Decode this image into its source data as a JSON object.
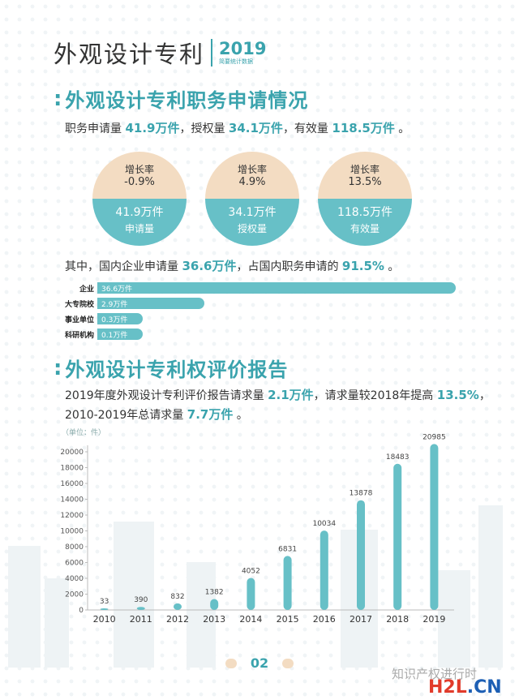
{
  "header": {
    "title": "外观设计专利",
    "year": "2019",
    "subtitle": "简要统计数据"
  },
  "section1": {
    "title": "外观设计专利职务申请情况",
    "intro": {
      "p1": "职务申请量",
      "v1": "41.9万件",
      "p2": "，授权量",
      "v2": "34.1万件",
      "p3": "，有效量",
      "v3": "118.5万件",
      "p4": "。"
    },
    "circles": [
      {
        "growth_label": "增长率",
        "growth": "-0.9%",
        "value": "41.9万件",
        "name": "申请量"
      },
      {
        "growth_label": "增长率",
        "growth": "4.9%",
        "value": "34.1万件",
        "name": "授权量"
      },
      {
        "growth_label": "增长率",
        "growth": "13.5%",
        "value": "118.5万件",
        "name": "有效量"
      }
    ],
    "domestic": {
      "p1": "其中，国内企业申请量",
      "v1": "36.6万件",
      "p2": "，占国内职务申请的",
      "v2": "91.5%",
      "p3": "。"
    },
    "breakdown": [
      {
        "label": "企业",
        "value_text": "36.6万件",
        "value": 36.6
      },
      {
        "label": "大专院校",
        "value_text": "2.9万件",
        "value": 2.9
      },
      {
        "label": "事业单位",
        "value_text": "0.3万件",
        "value": 0.3
      },
      {
        "label": "科研机构",
        "value_text": "0.1万件",
        "value": 0.1
      }
    ]
  },
  "section2": {
    "title": "外观设计专利权评价报告",
    "line1": {
      "p1": "2019年度外观设计专利评价报告请求量",
      "v1": "2.1万件",
      "p2": "，请求量较2018年提高",
      "v2": "13.5%",
      "p3": "，"
    },
    "line2": {
      "p1": "2010-2019年总请求量",
      "v1": "7.7万件",
      "p2": "。"
    }
  },
  "chart_data": {
    "type": "bar",
    "title": "",
    "unit_label": "（单位：件）",
    "xlabel": "",
    "ylabel": "",
    "categories": [
      "2010",
      "2011",
      "2012",
      "2013",
      "2014",
      "2015",
      "2016",
      "2017",
      "2018",
      "2019"
    ],
    "values": [
      33,
      390,
      832,
      1382,
      4052,
      6831,
      10034,
      13878,
      18483,
      20985
    ],
    "ylim": [
      0,
      20000
    ],
    "yticks": [
      0,
      2000,
      4000,
      6000,
      8000,
      10000,
      12000,
      14000,
      16000,
      18000,
      20000
    ],
    "grid": false,
    "color": "#67c0c7"
  },
  "footer": {
    "page": "02",
    "watermark": "知识产权进行时",
    "site_a": "H2L",
    "site_b": ".CN"
  },
  "colors": {
    "accent": "#3aa3ad",
    "bar": "#67c0c7",
    "peach": "#f3dcc2"
  }
}
